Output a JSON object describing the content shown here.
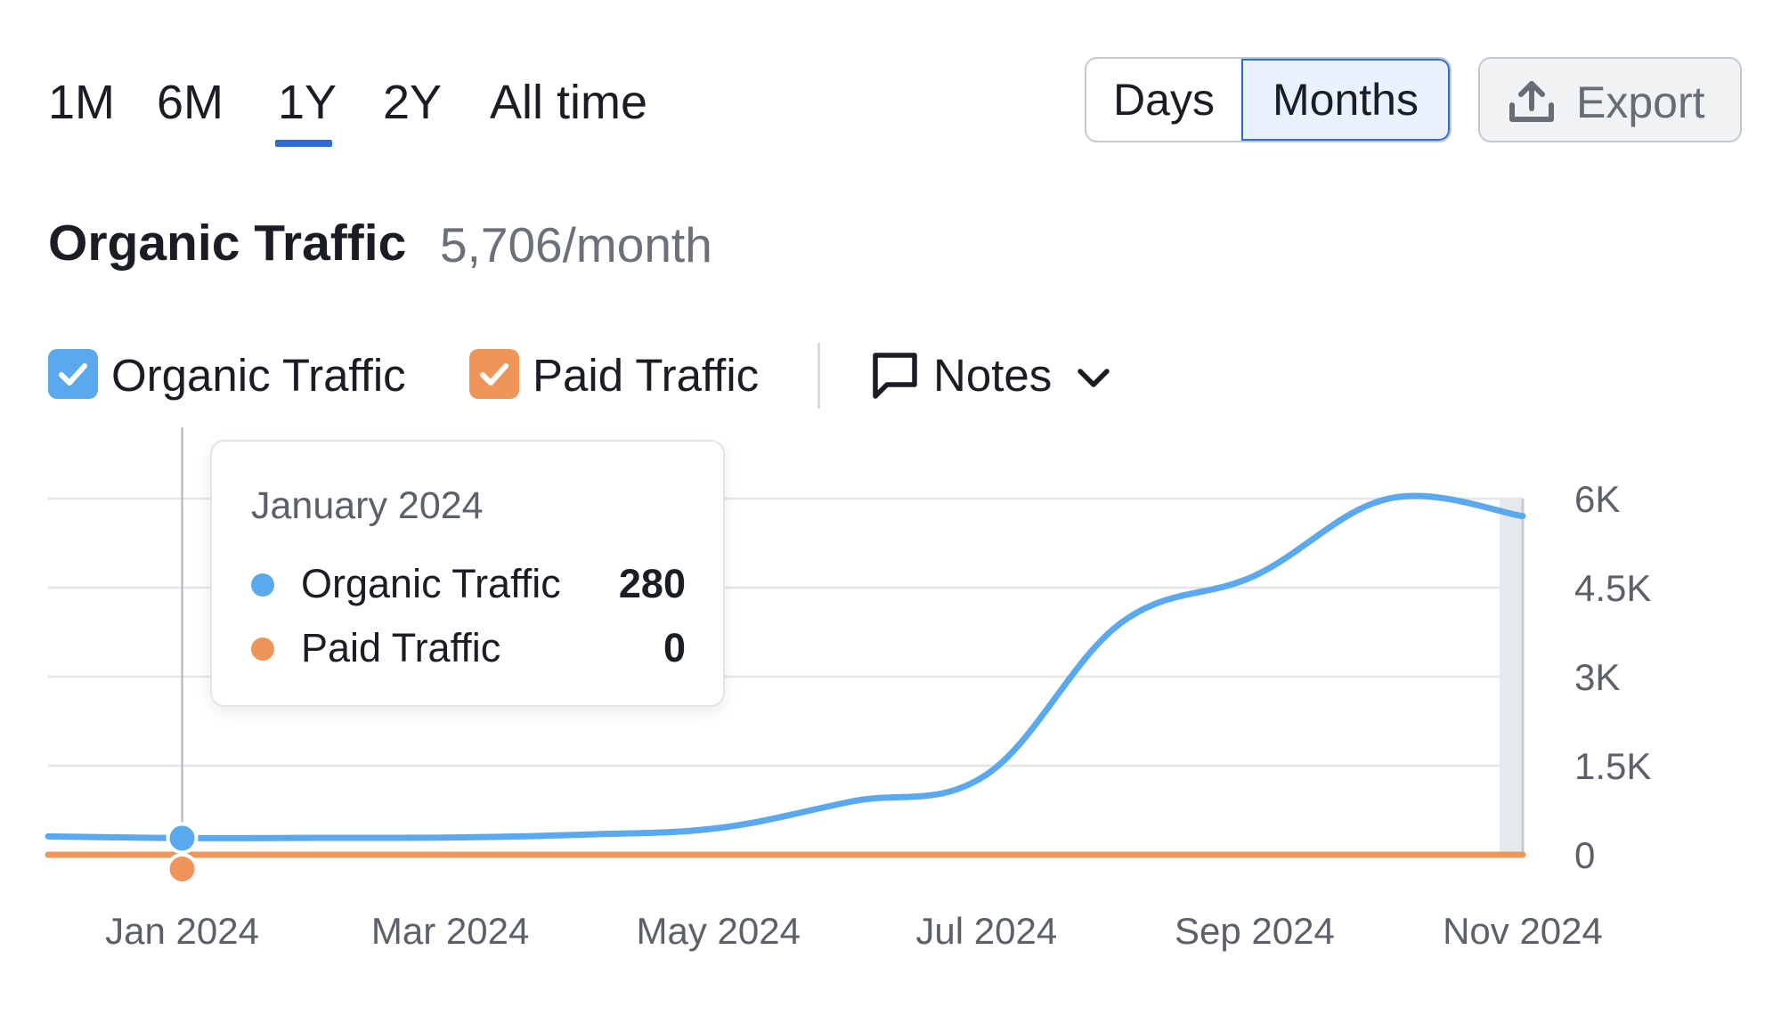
{
  "periods": {
    "tabs": [
      "1M",
      "6M",
      "1Y",
      "2Y",
      "All time"
    ],
    "active": "1Y"
  },
  "granularity": {
    "options": [
      "Days",
      "Months"
    ],
    "selected": "Months"
  },
  "export": {
    "label": "Export",
    "icon": "upload-icon"
  },
  "heading": {
    "title": "Organic Traffic",
    "value": "5,706/month"
  },
  "legend": {
    "items": [
      {
        "label": "Organic Traffic",
        "checked": true,
        "color": "#5aa9ef"
      },
      {
        "label": "Paid Traffic",
        "checked": true,
        "color": "#f0955a"
      }
    ],
    "notes_label": "Notes",
    "notes_icon": "comment-icon"
  },
  "tooltip": {
    "date": "January 2024",
    "rows": [
      {
        "label": "Organic Traffic",
        "value": "280",
        "color": "#5aa9ef"
      },
      {
        "label": "Paid Traffic",
        "value": "0",
        "color": "#f0955a"
      }
    ]
  },
  "chart_data": {
    "type": "line",
    "x": [
      "Dec 2023",
      "Jan 2024",
      "Feb 2024",
      "Mar 2024",
      "Apr 2024",
      "May 2024",
      "Jun 2024",
      "Jul 2024",
      "Aug 2024",
      "Sep 2024",
      "Oct 2024",
      "Nov 2024"
    ],
    "x_tick_labels": [
      "Jan 2024",
      "Mar 2024",
      "May 2024",
      "Jul 2024",
      "Sep 2024",
      "Nov 2024"
    ],
    "series": [
      {
        "name": "Organic Traffic",
        "color": "#5aa9ef",
        "values": [
          310,
          280,
          285,
          290,
          340,
          450,
          900,
          1350,
          3900,
          4700,
          6000,
          5706
        ]
      },
      {
        "name": "Paid Traffic",
        "color": "#f0955a",
        "values": [
          0,
          0,
          0,
          0,
          0,
          0,
          0,
          0,
          0,
          0,
          0,
          0
        ]
      }
    ],
    "y_ticks": [
      "0",
      "1.5K",
      "3K",
      "4.5K",
      "6K"
    ],
    "ylim": [
      0,
      6000
    ],
    "highlight_x": "Jan 2024",
    "grid": true
  }
}
